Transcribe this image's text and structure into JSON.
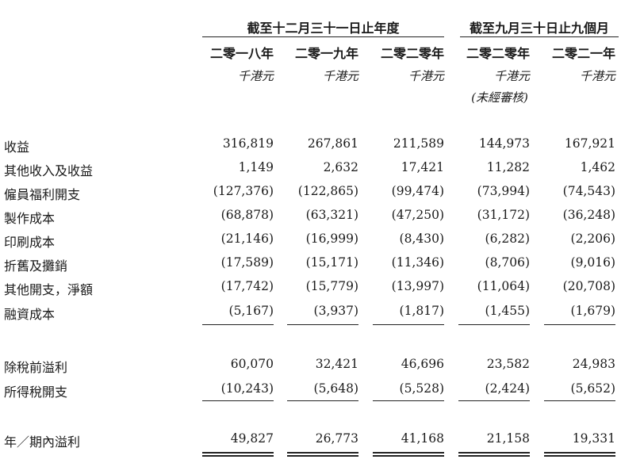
{
  "header": {
    "group1": "截至十二月三十一日止年度",
    "group2": "截至九月三十日止九個月",
    "years": [
      "二零一八年",
      "二零一九年",
      "二零二零年",
      "二零二零年",
      "二零二一年"
    ],
    "unit": "千港元",
    "unaudited_note": "(未經審核)"
  },
  "rows": [
    {
      "label": "收益",
      "values": [
        "316,819",
        "267,861",
        "211,589",
        "144,973",
        "167,921"
      ]
    },
    {
      "label": "其他收入及收益",
      "values": [
        "1,149",
        "2,632",
        "17,421",
        "11,282",
        "1,462"
      ]
    },
    {
      "label": "僱員福利開支",
      "values": [
        "(127,376)",
        "(122,865)",
        "(99,474)",
        "(73,994)",
        "(74,543)"
      ]
    },
    {
      "label": "製作成本",
      "values": [
        "(68,878)",
        "(63,321)",
        "(47,250)",
        "(31,172)",
        "(36,248)"
      ]
    },
    {
      "label": "印刷成本",
      "values": [
        "(21,146)",
        "(16,999)",
        "(8,430)",
        "(6,282)",
        "(2,206)"
      ]
    },
    {
      "label": "折舊及攤銷",
      "values": [
        "(17,589)",
        "(15,171)",
        "(11,346)",
        "(8,706)",
        "(9,016)"
      ]
    },
    {
      "label": "其他開支，淨額",
      "values": [
        "(17,742)",
        "(15,779)",
        "(13,997)",
        "(11,064)",
        "(20,708)"
      ]
    },
    {
      "label": "融資成本",
      "values": [
        "(5,167)",
        "(3,937)",
        "(1,817)",
        "(1,455)",
        "(1,679)"
      ]
    },
    {
      "label": "除稅前溢利",
      "values": [
        "60,070",
        "32,421",
        "46,696",
        "23,582",
        "24,983"
      ]
    },
    {
      "label": "所得稅開支",
      "values": [
        "(10,243)",
        "(5,648)",
        "(5,528)",
        "(2,424)",
        "(5,652)"
      ]
    },
    {
      "label": "年／期內溢利",
      "values": [
        "49,827",
        "26,773",
        "41,168",
        "21,158",
        "19,331"
      ]
    }
  ]
}
